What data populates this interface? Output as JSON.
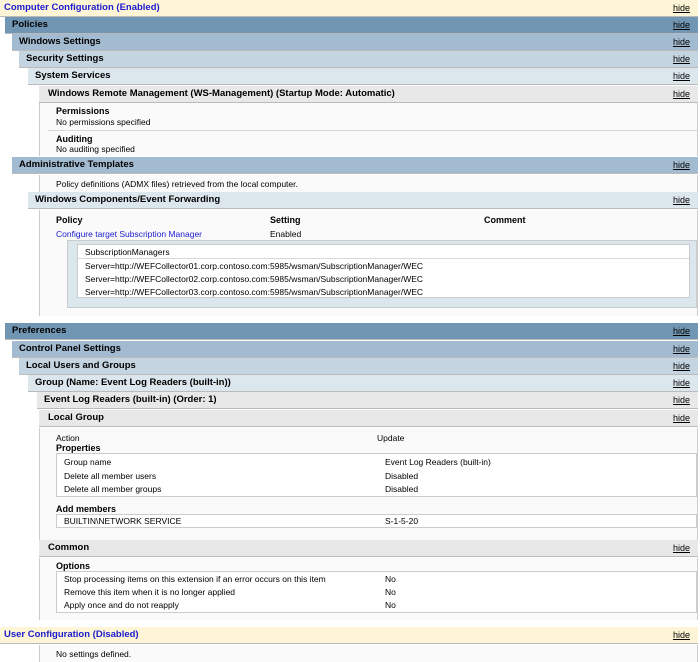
{
  "hide_label": "hide",
  "computer_config": "Computer Configuration (Enabled)",
  "policies": "Policies",
  "windows_settings": "Windows Settings",
  "security_settings": "Security Settings",
  "system_services": "System Services",
  "winrm": "Windows Remote Management (WS-Management) (Startup Mode: Automatic)",
  "permissions": {
    "label": "Permissions",
    "value": "No permissions specified"
  },
  "auditing": {
    "label": "Auditing",
    "value": "No auditing specified"
  },
  "admin_templates": "Administrative Templates",
  "admx_note": "Policy definitions (ADMX files) retrieved from the local computer.",
  "event_forwarding": "Windows Components/Event Forwarding",
  "policy_table": {
    "headers": [
      "Policy",
      "Setting",
      "Comment"
    ],
    "policy": "Configure target Subscription Manager",
    "setting": "Enabled",
    "sub_header": "SubscriptionManagers",
    "servers": [
      "Server=http://WEFCollector01.corp.contoso.com:5985/wsman/SubscriptionManager/WEC",
      "Server=http://WEFCollector02.corp.contoso.com:5985/wsman/SubscriptionManager/WEC",
      "Server=http://WEFCollector03.corp.contoso.com:5985/wsman/SubscriptionManager/WEC"
    ]
  },
  "preferences": "Preferences",
  "control_panel": "Control Panel Settings",
  "local_users": "Local Users and Groups",
  "group": "Group (Name: Event Log Readers (built-in))",
  "elr": "Event Log Readers (built-in) (Order: 1)",
  "local_group": "Local Group",
  "action": {
    "label": "Action",
    "value": "Update"
  },
  "properties_label": "Properties",
  "properties": [
    {
      "k": "Group name",
      "v": "Event Log Readers (built-in)"
    },
    {
      "k": "Delete all member users",
      "v": "Disabled"
    },
    {
      "k": "Delete all member groups",
      "v": "Disabled"
    }
  ],
  "add_members_label": "Add members",
  "members": [
    {
      "k": "BUILTIN\\NETWORK SERVICE",
      "v": "S-1-5-20"
    }
  ],
  "common": "Common",
  "options_label": "Options",
  "options": [
    {
      "k": "Stop processing items on this extension if an error occurs on this item",
      "v": "No"
    },
    {
      "k": "Remove this item when it is no longer applied",
      "v": "No"
    },
    {
      "k": "Apply once and do not reapply",
      "v": "No"
    }
  ],
  "user_config": "User Configuration (Disabled)",
  "no_settings": "No settings defined.",
  "colors": {
    "level1": "#7196b3",
    "level2": "#a3bbd0",
    "level3": "#c4d5e1",
    "level4": "#dce6ed",
    "level5": "#e8e8e8",
    "config": "#fdf5d5",
    "link": "#1a1ad0"
  }
}
